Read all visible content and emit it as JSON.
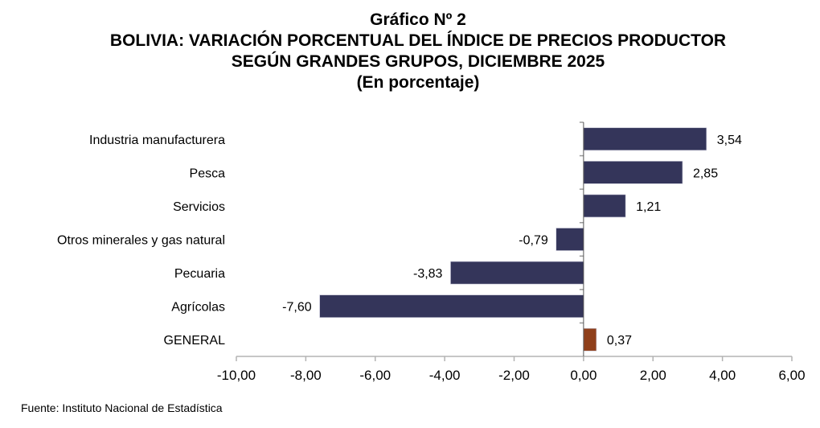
{
  "chart_data": {
    "type": "bar",
    "orientation": "horizontal",
    "title_lines": [
      "Gráfico Nº 2",
      "BOLIVIA: VARIACIÓN PORCENTUAL DEL ÍNDICE DE PRECIOS PRODUCTOR",
      "SEGÚN GRANDES GRUPOS, DICIEMBRE 2025",
      "(En porcentaje)"
    ],
    "categories": [
      "Industria manufacturera",
      "Pesca",
      "Servicios",
      "Otros minerales y gas natural",
      "Pecuaria",
      "Agrícolas",
      "GENERAL"
    ],
    "values": [
      3.54,
      2.85,
      1.21,
      -0.79,
      -3.83,
      -7.6,
      0.37
    ],
    "value_labels": [
      "3,54",
      "2,85",
      "1,21",
      "-0,79",
      "-3,83",
      "-7,60",
      "0,37"
    ],
    "colors": [
      "#34355a",
      "#34355a",
      "#34355a",
      "#34355a",
      "#34355a",
      "#34355a",
      "#8f3f1a"
    ],
    "xlim": [
      -10,
      6
    ],
    "x_ticks": [
      -10,
      -8,
      -6,
      -4,
      -2,
      0,
      2,
      4,
      6
    ],
    "x_tick_labels": [
      "-10,00",
      "-8,00",
      "-6,00",
      "-4,00",
      "-2,00",
      "0,00",
      "2,00",
      "4,00",
      "6,00"
    ],
    "xlabel": "",
    "ylabel": "",
    "grid": false,
    "legend": "none"
  },
  "footer": {
    "source": "Fuente: Instituto Nacional de Estadística"
  }
}
